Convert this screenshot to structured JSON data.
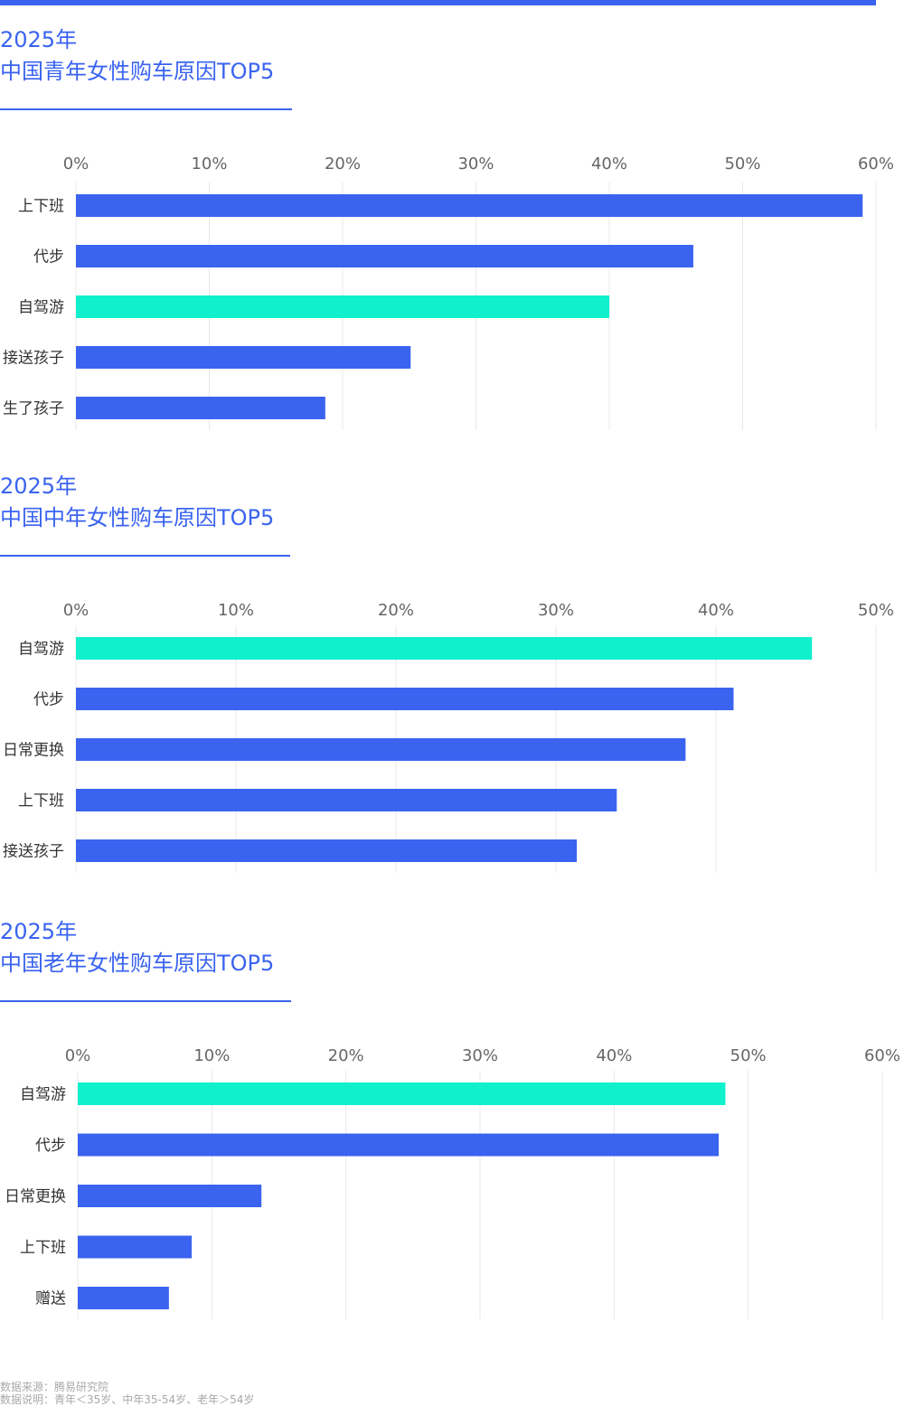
{
  "accent_color": "#3a63f0",
  "highlight_color": "#10f0cc",
  "grid_color": "#e8e8e8",
  "tick_color": "#666666",
  "charts": [
    {
      "year": "2025年",
      "title": "中国青年女性购车原因TOP5"
    },
    {
      "year": "2025年",
      "title": "中国中年女性购车原因TOP5"
    },
    {
      "year": "2025年",
      "title": "中国老年女性购车原因TOP5"
    }
  ],
  "chart_data": [
    {
      "type": "bar",
      "orientation": "horizontal",
      "title": "2025年 中国青年女性购车原因TOP5",
      "categories": [
        "上下班",
        "代步",
        "自驾游",
        "接送孩子",
        "生了孩子"
      ],
      "values": [
        59,
        46.3,
        40,
        25.1,
        18.7
      ],
      "highlight": [
        "自驾游"
      ],
      "xlim": [
        0,
        60
      ],
      "xticks": [
        "0%",
        "10%",
        "20%",
        "30%",
        "40%",
        "50%",
        "60%"
      ],
      "grid": true
    },
    {
      "type": "bar",
      "orientation": "horizontal",
      "title": "2025年 中国中年女性购车原因TOP5",
      "categories": [
        "自驾游",
        "代步",
        "日常更换",
        "上下班",
        "接送孩子"
      ],
      "values": [
        46,
        41.1,
        38.1,
        33.8,
        31.3
      ],
      "highlight": [
        "自驾游"
      ],
      "xlim": [
        0,
        50
      ],
      "xticks": [
        "0%",
        "10%",
        "20%",
        "30%",
        "40%",
        "50%"
      ],
      "grid": true
    },
    {
      "type": "bar",
      "orientation": "horizontal",
      "title": "2025年 中国老年女性购车原因TOP5",
      "categories": [
        "自驾游",
        "代步",
        "日常更换",
        "上下班",
        "赠送"
      ],
      "values": [
        48.3,
        47.8,
        13.7,
        8.5,
        6.8
      ],
      "highlight": [
        "自驾游"
      ],
      "xlim": [
        0,
        60
      ],
      "xticks": [
        "0%",
        "10%",
        "20%",
        "30%",
        "40%",
        "50%",
        "60%"
      ],
      "grid": true
    }
  ],
  "footer": {
    "source": "数据来源：腾易研究院",
    "note": "数据说明：青年＜35岁、中年35-54岁、老年＞54岁"
  }
}
